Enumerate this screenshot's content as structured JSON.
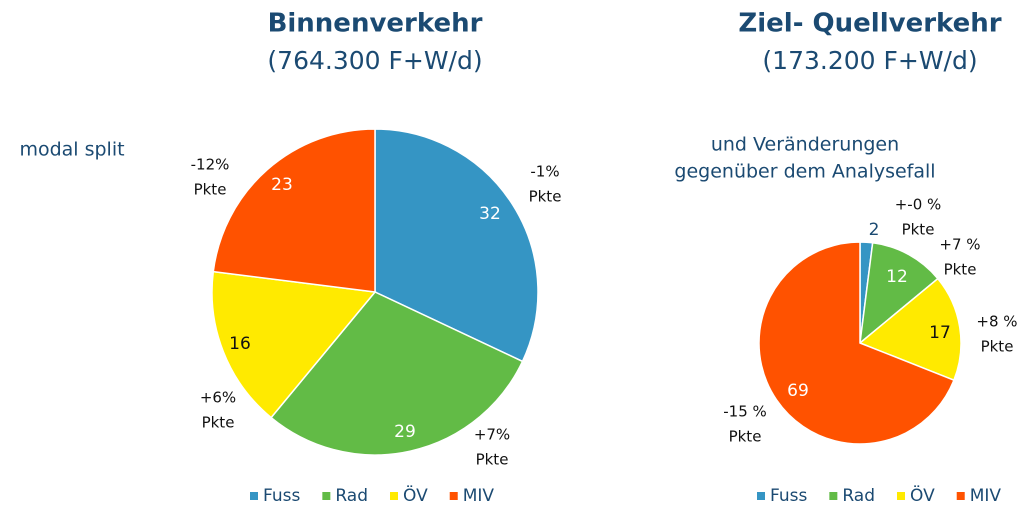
{
  "chart_data": [
    {
      "type": "pie",
      "title": "Binnenverkehr",
      "subtitle": "(764.300 F+W/d)",
      "annotations": [
        "modal split"
      ],
      "categories": [
        "Fuss",
        "Rad",
        "ÖV",
        "MIV"
      ],
      "values": [
        32,
        29,
        16,
        23
      ],
      "colors": [
        "#3595c4",
        "#62bb46",
        "#ffea00",
        "#ff5200"
      ],
      "change_labels": [
        [
          "-1%",
          "Pkte"
        ],
        [
          "+7%",
          "Pkte"
        ],
        [
          "+6%",
          "Pkte"
        ],
        [
          "-12%",
          "Pkte"
        ]
      ]
    },
    {
      "type": "pie",
      "title": "Ziel- Quellverkehr",
      "subtitle": "(173.200 F+W/d)",
      "annotations": [
        "und Veränderungen",
        "gegenüber dem Analysefall"
      ],
      "categories": [
        "Fuss",
        "Rad",
        "ÖV",
        "MIV"
      ],
      "values": [
        2,
        12,
        17,
        69
      ],
      "colors": [
        "#3595c4",
        "#62bb46",
        "#ffea00",
        "#ff5200"
      ],
      "change_labels": [
        [
          "+-0 %",
          "Pkte"
        ],
        [
          "+7 %",
          "Pkte"
        ],
        [
          "+8 %",
          "Pkte"
        ],
        [
          "-15 %",
          "Pkte"
        ]
      ]
    }
  ]
}
